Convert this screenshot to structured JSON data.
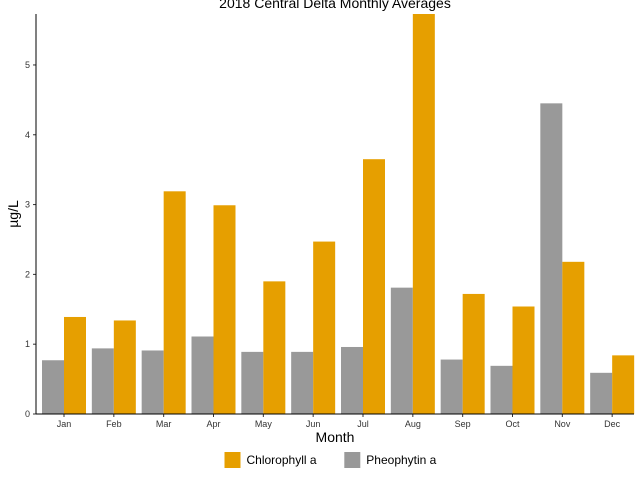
{
  "chart_data": {
    "type": "bar",
    "title": "2018 Central Delta Monthly Averages",
    "xlabel": "Month",
    "ylabel": "µg/L",
    "categories": [
      "Jan",
      "Feb",
      "Mar",
      "Apr",
      "May",
      "Jun",
      "Jul",
      "Aug",
      "Sep",
      "Oct",
      "Nov",
      "Dec"
    ],
    "series": [
      {
        "name": "Pheophytin a",
        "color": "#999999",
        "values": [
          0.77,
          0.94,
          0.91,
          1.11,
          0.89,
          0.89,
          0.96,
          1.81,
          0.78,
          0.69,
          4.45,
          0.59
        ]
      },
      {
        "name": "Chlorophyll a",
        "color": "#E69F00",
        "values": [
          1.39,
          1.34,
          3.19,
          2.99,
          1.9,
          2.47,
          3.65,
          5.73,
          1.72,
          1.54,
          2.18,
          0.84
        ]
      }
    ],
    "y_ticks": [
      0,
      1,
      2,
      3,
      4,
      5
    ],
    "ylim": [
      0,
      5.73
    ],
    "grid": false,
    "legend": {
      "placement": "bottom",
      "entries": [
        {
          "name": "Chlorophyll a",
          "color": "#E69F00"
        },
        {
          "name": "Pheophytin a",
          "color": "#999999"
        }
      ]
    }
  }
}
